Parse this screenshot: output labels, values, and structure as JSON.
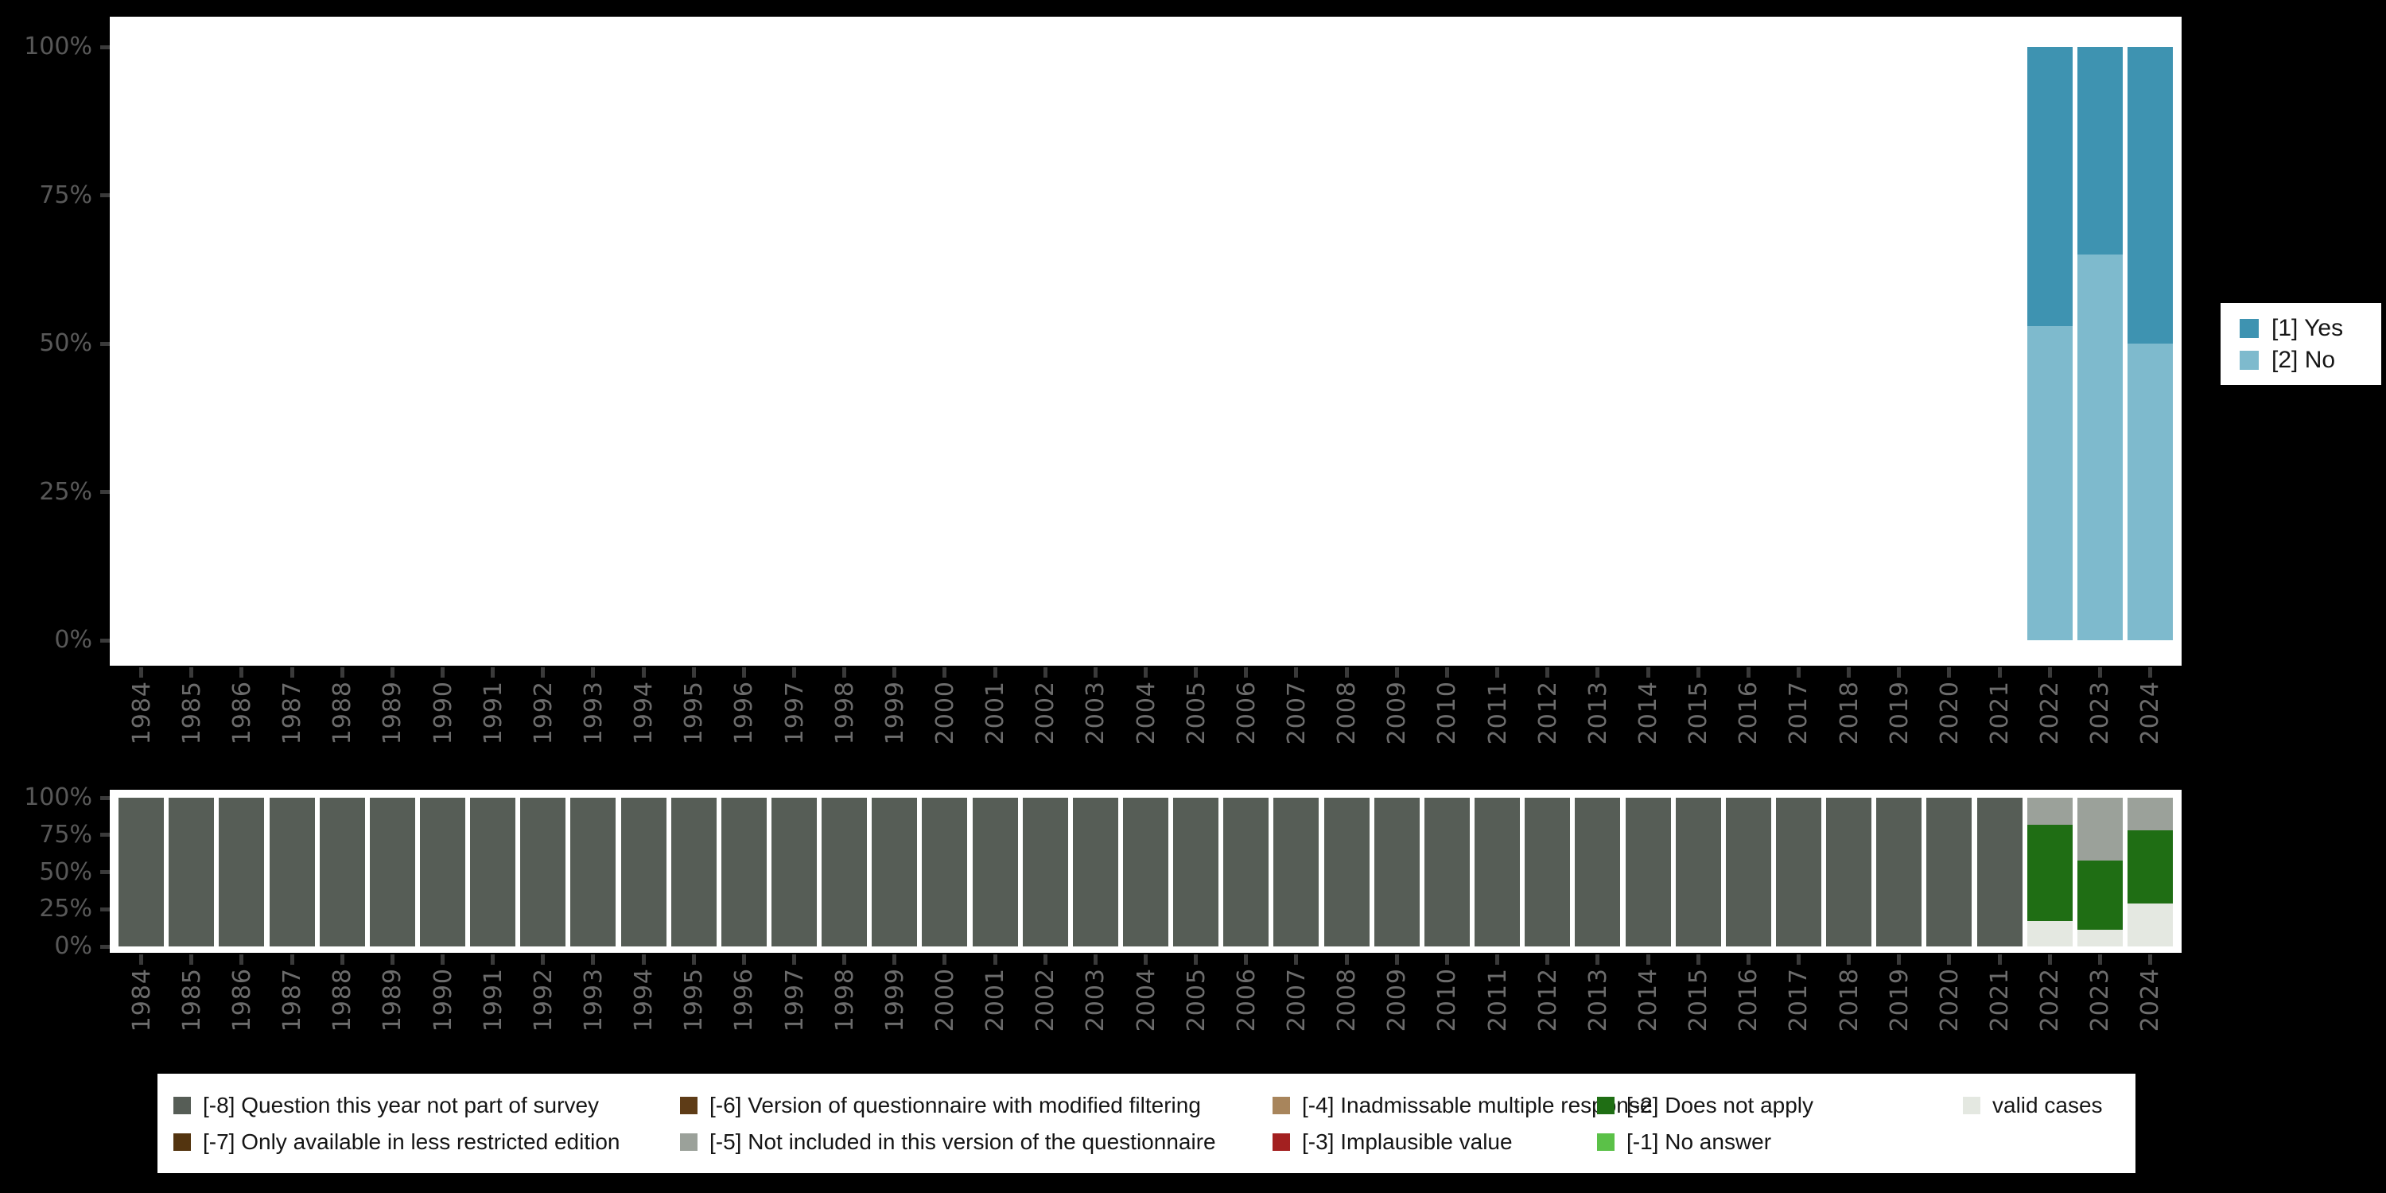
{
  "colors": {
    "background": "#000000",
    "panel": "#ffffff",
    "axis_tick": "#3a3a3a",
    "percent_label": "#585858",
    "year_label": "#6c6c6c",
    "yes": "#3E93B1",
    "no": "#7EBACD",
    "minus8": "#565D56",
    "minus7": "#53340F",
    "minus6": "#5E3C17",
    "minus5": "#9BA19A",
    "minus4": "#A8855C",
    "minus3": "#A32020",
    "minus2": "#1F6E14",
    "minus1": "#5BC148",
    "valid": "#E4E8E1"
  },
  "axes": {
    "y_tick_labels": [
      "100%",
      "75%",
      "50%",
      "25%",
      "0%"
    ]
  },
  "chart_data": [
    {
      "id": "valid-answers",
      "type": "bar",
      "stacked": true,
      "value_unit": "percent",
      "ylim": [
        0,
        100
      ],
      "y_tick_labels": [
        "100%",
        "75%",
        "50%",
        "25%",
        "0%"
      ],
      "grid": false,
      "legend_position": "right",
      "categories": [
        "1984",
        "1985",
        "1986",
        "1987",
        "1988",
        "1989",
        "1990",
        "1991",
        "1992",
        "1993",
        "1994",
        "1995",
        "1996",
        "1997",
        "1998",
        "1999",
        "2000",
        "2001",
        "2002",
        "2003",
        "2004",
        "2005",
        "2006",
        "2007",
        "2008",
        "2009",
        "2010",
        "2011",
        "2012",
        "2013",
        "2014",
        "2015",
        "2016",
        "2017",
        "2018",
        "2019",
        "2020",
        "2021",
        "2022",
        "2023",
        "2024"
      ],
      "series": [
        {
          "name": "[1] Yes",
          "color": "#3E93B1",
          "values": [
            0,
            0,
            0,
            0,
            0,
            0,
            0,
            0,
            0,
            0,
            0,
            0,
            0,
            0,
            0,
            0,
            0,
            0,
            0,
            0,
            0,
            0,
            0,
            0,
            0,
            0,
            0,
            0,
            0,
            0,
            0,
            0,
            0,
            0,
            0,
            0,
            0,
            0,
            47,
            35,
            50
          ]
        },
        {
          "name": "[2] No",
          "color": "#7EBACD",
          "values": [
            0,
            0,
            0,
            0,
            0,
            0,
            0,
            0,
            0,
            0,
            0,
            0,
            0,
            0,
            0,
            0,
            0,
            0,
            0,
            0,
            0,
            0,
            0,
            0,
            0,
            0,
            0,
            0,
            0,
            0,
            0,
            0,
            0,
            0,
            0,
            0,
            0,
            0,
            53,
            65,
            50
          ]
        }
      ]
    },
    {
      "id": "missing-values",
      "type": "bar",
      "stacked": true,
      "value_unit": "percent",
      "ylim": [
        0,
        100
      ],
      "y_tick_labels": [
        "100%",
        "75%",
        "50%",
        "25%",
        "0%"
      ],
      "grid": false,
      "legend_position": "bottom",
      "categories": [
        "1984",
        "1985",
        "1986",
        "1987",
        "1988",
        "1989",
        "1990",
        "1991",
        "1992",
        "1993",
        "1994",
        "1995",
        "1996",
        "1997",
        "1998",
        "1999",
        "2000",
        "2001",
        "2002",
        "2003",
        "2004",
        "2005",
        "2006",
        "2007",
        "2008",
        "2009",
        "2010",
        "2011",
        "2012",
        "2013",
        "2014",
        "2015",
        "2016",
        "2017",
        "2018",
        "2019",
        "2020",
        "2021",
        "2022",
        "2023",
        "2024"
      ],
      "series": [
        {
          "name": "[-8] Question this year not part of survey",
          "color": "#565D56",
          "values": [
            100,
            100,
            100,
            100,
            100,
            100,
            100,
            100,
            100,
            100,
            100,
            100,
            100,
            100,
            100,
            100,
            100,
            100,
            100,
            100,
            100,
            100,
            100,
            100,
            100,
            100,
            100,
            100,
            100,
            100,
            100,
            100,
            100,
            100,
            100,
            100,
            100,
            100,
            0,
            0,
            0
          ]
        },
        {
          "name": "[-5] Not included in this version of the questionnaire",
          "color": "#9BA19A",
          "values": [
            0,
            0,
            0,
            0,
            0,
            0,
            0,
            0,
            0,
            0,
            0,
            0,
            0,
            0,
            0,
            0,
            0,
            0,
            0,
            0,
            0,
            0,
            0,
            0,
            0,
            0,
            0,
            0,
            0,
            0,
            0,
            0,
            0,
            0,
            0,
            0,
            0,
            0,
            18,
            42,
            22
          ]
        },
        {
          "name": "[-2] Does not apply",
          "color": "#1F6E14",
          "values": [
            0,
            0,
            0,
            0,
            0,
            0,
            0,
            0,
            0,
            0,
            0,
            0,
            0,
            0,
            0,
            0,
            0,
            0,
            0,
            0,
            0,
            0,
            0,
            0,
            0,
            0,
            0,
            0,
            0,
            0,
            0,
            0,
            0,
            0,
            0,
            0,
            0,
            0,
            65,
            47,
            49
          ]
        },
        {
          "name": "valid cases",
          "color": "#E4E8E1",
          "values": [
            0,
            0,
            0,
            0,
            0,
            0,
            0,
            0,
            0,
            0,
            0,
            0,
            0,
            0,
            0,
            0,
            0,
            0,
            0,
            0,
            0,
            0,
            0,
            0,
            0,
            0,
            0,
            0,
            0,
            0,
            0,
            0,
            0,
            0,
            0,
            0,
            0,
            0,
            17,
            11,
            29
          ]
        }
      ]
    }
  ],
  "legend_right": {
    "items": [
      {
        "label": "[1] Yes",
        "color": "#3E93B1"
      },
      {
        "label": "[2] No",
        "color": "#7EBACD"
      }
    ]
  },
  "legend_bottom": {
    "columns": [
      [
        {
          "label": "[-8] Question this year not part of survey",
          "color": "#565D56"
        },
        {
          "label": "[-7] Only available in less restricted edition",
          "color": "#53340F"
        }
      ],
      [
        {
          "label": "[-6] Version of questionnaire with modified filtering",
          "color": "#5E3C17"
        },
        {
          "label": "[-5] Not included in this version of the questionnaire",
          "color": "#9BA19A"
        }
      ],
      [
        {
          "label": "[-4] Inadmissable multiple response",
          "color": "#A8855C"
        },
        {
          "label": "[-3] Implausible value",
          "color": "#A32020"
        }
      ],
      [
        {
          "label": "[-2] Does not apply",
          "color": "#1F6E14"
        },
        {
          "label": "[-1] No answer",
          "color": "#5BC148"
        }
      ],
      [
        {
          "label": "valid cases",
          "color": "#E4E8E1"
        }
      ]
    ]
  }
}
